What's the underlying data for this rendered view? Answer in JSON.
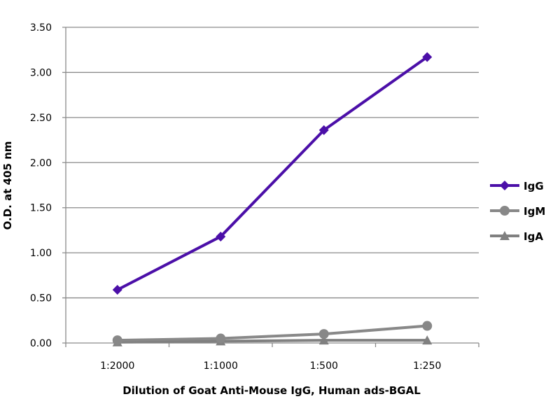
{
  "chart_data": {
    "type": "line",
    "title": "",
    "xlabel": "Dilution of Goat Anti-Mouse IgG, Human ads-BGAL",
    "ylabel": "O.D. at 405 nm",
    "categories": [
      "1:2000",
      "1:1000",
      "1:500",
      "1:250"
    ],
    "ylim": [
      0,
      3.5
    ],
    "yticks": [
      "0.00",
      "0.50",
      "1.00",
      "1.50",
      "2.00",
      "2.50",
      "3.00",
      "3.50"
    ],
    "grid": true,
    "legend": "right",
    "series": [
      {
        "name": "IgG",
        "values": [
          0.59,
          1.18,
          2.36,
          3.17
        ],
        "color": "#4b0fa8",
        "marker": "diamond"
      },
      {
        "name": "IgM",
        "values": [
          0.03,
          0.05,
          0.1,
          0.19
        ],
        "color": "#888888",
        "marker": "circle"
      },
      {
        "name": "IgA",
        "values": [
          0.01,
          0.02,
          0.03,
          0.03
        ],
        "color": "#808080",
        "marker": "triangle"
      }
    ]
  }
}
